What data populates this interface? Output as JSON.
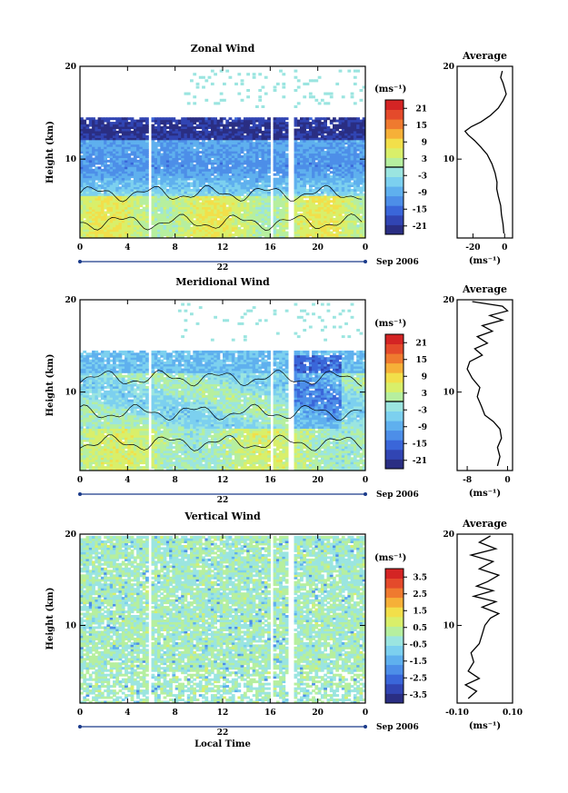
{
  "colors": {
    "scale": [
      "#2a2e83",
      "#3145b3",
      "#3a66d9",
      "#4d8ee8",
      "#5fb0ee",
      "#7cd0ef",
      "#9be5e0",
      "#b6ef9f",
      "#d9ef6a",
      "#f2df4a",
      "#f6b038",
      "#ef7a2f",
      "#e44a2b",
      "#d42424"
    ],
    "frame": "#000000",
    "gap": "#ffffff"
  },
  "chart_data": [
    {
      "type": "heatmap",
      "title": "Zonal Wind",
      "ylabel": "Height (km)",
      "xlabel": "",
      "x_ticks": [
        "0",
        "4",
        "8",
        "12",
        "16",
        "20",
        "0"
      ],
      "y_ticks": [
        "20",
        "10"
      ],
      "day_label": "22",
      "month_label": "Sep 2006",
      "xlim": [
        0,
        24
      ],
      "ylim": [
        1.5,
        20
      ],
      "colorbar": {
        "unit": "(ms⁻¹)",
        "ticks": [
          "21",
          "15",
          "9",
          "3",
          "-3",
          "-9",
          "-15",
          "-21"
        ],
        "range": [
          -24,
          24
        ],
        "zero_line": true
      },
      "data_gaps_hours": [
        [
          5.6,
          5.9
        ],
        [
          15.9,
          16.2
        ],
        [
          17.4,
          17.8
        ]
      ],
      "profile": {
        "title": "Average",
        "xlabel": "(ms⁻¹)",
        "x_ticks": [
          "-20",
          "0"
        ],
        "xlim": [
          -30,
          5
        ],
        "y_ticks": [
          "20",
          "10"
        ],
        "points": [
          [
            -0.5,
            2
          ],
          [
            -1,
            3
          ],
          [
            -2,
            4
          ],
          [
            -2.5,
            5
          ],
          [
            -4,
            6
          ],
          [
            -5,
            6.8
          ],
          [
            -4.8,
            7.5
          ],
          [
            -6,
            8.5
          ],
          [
            -8,
            9.5
          ],
          [
            -11,
            10.5
          ],
          [
            -15,
            11.3
          ],
          [
            -19,
            12
          ],
          [
            -23,
            12.6
          ],
          [
            -25,
            13
          ],
          [
            -21,
            13.5
          ],
          [
            -15,
            14
          ],
          [
            -9,
            14.7
          ],
          [
            -4,
            15.5
          ],
          [
            -1,
            16.3
          ],
          [
            1,
            17
          ],
          [
            0,
            17.6
          ],
          [
            -1,
            18.2
          ],
          [
            -2.5,
            18.8
          ],
          [
            -1.5,
            19.5
          ]
        ]
      }
    },
    {
      "type": "heatmap",
      "title": "Meridional Wind",
      "ylabel": "Height (km)",
      "xlabel": "",
      "x_ticks": [
        "0",
        "4",
        "8",
        "12",
        "16",
        "20",
        "0"
      ],
      "y_ticks": [
        "20",
        "10"
      ],
      "day_label": "22",
      "month_label": "Sep 2006",
      "xlim": [
        0,
        24
      ],
      "ylim": [
        1.5,
        20
      ],
      "colorbar": {
        "unit": "(ms⁻¹)",
        "ticks": [
          "21",
          "15",
          "9",
          "3",
          "-3",
          "-9",
          "-15",
          "-21"
        ],
        "range": [
          -24,
          24
        ],
        "zero_line": true
      },
      "data_gaps_hours": [
        [
          5.6,
          5.9
        ],
        [
          15.9,
          16.2
        ],
        [
          17.4,
          17.8
        ]
      ],
      "profile": {
        "title": "Average",
        "xlabel": "(ms⁻¹)",
        "x_ticks": [
          "-8",
          "0"
        ],
        "xlim": [
          -10,
          1
        ],
        "y_ticks": [
          "20",
          "10"
        ],
        "points": [
          [
            -2,
            2
          ],
          [
            -1.5,
            3
          ],
          [
            -2,
            4
          ],
          [
            -1.2,
            5
          ],
          [
            -1.5,
            6
          ],
          [
            -2.8,
            6.8
          ],
          [
            -4.5,
            7.5
          ],
          [
            -5.2,
            8.5
          ],
          [
            -6,
            9.5
          ],
          [
            -5.5,
            10.5
          ],
          [
            -7,
            11.5
          ],
          [
            -8,
            12.5
          ],
          [
            -7.5,
            13.3
          ],
          [
            -5,
            14
          ],
          [
            -6.5,
            14.7
          ],
          [
            -4,
            15.3
          ],
          [
            -6,
            16
          ],
          [
            -3,
            16.6
          ],
          [
            -5,
            17.2
          ],
          [
            -1,
            17.8
          ],
          [
            -3.5,
            18.3
          ],
          [
            0,
            18.8
          ],
          [
            -1,
            19.3
          ],
          [
            -7,
            19.8
          ]
        ]
      }
    },
    {
      "type": "heatmap",
      "title": "Vertical Wind",
      "ylabel": "Height (km)",
      "xlabel": "Local Time",
      "x_ticks": [
        "0",
        "4",
        "8",
        "12",
        "16",
        "20",
        "0"
      ],
      "y_ticks": [
        "20",
        "10"
      ],
      "day_label": "22",
      "month_label": "Sep 2006",
      "xlim": [
        0,
        24
      ],
      "ylim": [
        1.5,
        20
      ],
      "colorbar": {
        "unit": "(ms⁻¹)",
        "ticks": [
          "3.5",
          "2.5",
          "1.5",
          "0.5",
          "-0.5",
          "-1.5",
          "-2.5",
          "-3.5"
        ],
        "range": [
          -4,
          4
        ],
        "zero_line": false
      },
      "data_gaps_hours": [
        [
          5.6,
          5.9
        ],
        [
          15.9,
          16.2
        ],
        [
          17.4,
          17.8
        ]
      ],
      "profile": {
        "title": "Average",
        "xlabel": "(ms⁻¹)",
        "x_ticks": [
          "-0.10",
          "0.10"
        ],
        "xlim": [
          -0.1,
          0.1
        ],
        "y_ticks": [
          "20",
          "10"
        ],
        "points": [
          [
            -0.06,
            2
          ],
          [
            -0.03,
            2.8
          ],
          [
            -0.07,
            3.5
          ],
          [
            -0.02,
            4.2
          ],
          [
            -0.06,
            5
          ],
          [
            -0.04,
            6
          ],
          [
            -0.05,
            7
          ],
          [
            -0.02,
            8
          ],
          [
            -0.01,
            9
          ],
          [
            0.0,
            10
          ],
          [
            0.02,
            10.8
          ],
          [
            0.05,
            11.3
          ],
          [
            -0.01,
            12
          ],
          [
            0.04,
            12.6
          ],
          [
            -0.04,
            13.2
          ],
          [
            0.03,
            13.8
          ],
          [
            -0.03,
            14.3
          ],
          [
            0.01,
            14.8
          ],
          [
            0.05,
            15.5
          ],
          [
            -0.02,
            16.2
          ],
          [
            0.03,
            17
          ],
          [
            -0.05,
            17.7
          ],
          [
            0.04,
            18.4
          ],
          [
            -0.02,
            19.1
          ],
          [
            0.02,
            19.8
          ]
        ]
      }
    }
  ]
}
